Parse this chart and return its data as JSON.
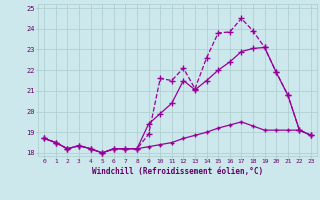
{
  "background_color": "#cce8ec",
  "grid_color": "#aacccc",
  "line_color": "#990099",
  "xlabel": "Windchill (Refroidissement éolien,°C)",
  "xlabel_color": "#660066",
  "tick_color": "#660066",
  "xlim": [
    -0.5,
    23.5
  ],
  "ylim": [
    17.85,
    25.2
  ],
  "yticks": [
    18,
    19,
    20,
    21,
    22,
    23,
    24,
    25
  ],
  "xticks": [
    0,
    1,
    2,
    3,
    4,
    5,
    6,
    7,
    8,
    9,
    10,
    11,
    12,
    13,
    14,
    15,
    16,
    17,
    18,
    19,
    20,
    21,
    22,
    23
  ],
  "series": [
    {
      "x": [
        0,
        1,
        2,
        3,
        4,
        5,
        6,
        7,
        8,
        9,
        10,
        11,
        12,
        13,
        14,
        15,
        16,
        17,
        18,
        19,
        20,
        21,
        22,
        23
      ],
      "y": [
        18.7,
        18.5,
        18.2,
        18.35,
        18.2,
        18.0,
        18.2,
        18.2,
        18.2,
        18.9,
        21.6,
        21.5,
        22.1,
        21.1,
        22.6,
        23.8,
        23.85,
        24.5,
        23.9,
        23.1,
        21.9,
        20.8,
        19.1,
        18.85
      ],
      "marker": "+",
      "markersize": 4,
      "linestyle": "--",
      "linewidth": 0.9
    },
    {
      "x": [
        0,
        1,
        2,
        3,
        4,
        5,
        6,
        7,
        8,
        9,
        10,
        11,
        12,
        13,
        14,
        15,
        16,
        17,
        18,
        19,
        20,
        21,
        22,
        23
      ],
      "y": [
        18.7,
        18.5,
        18.2,
        18.35,
        18.2,
        18.0,
        18.2,
        18.2,
        18.2,
        19.4,
        19.9,
        20.4,
        21.5,
        21.05,
        21.5,
        22.0,
        22.4,
        22.9,
        23.05,
        23.1,
        21.9,
        20.8,
        19.1,
        18.85
      ],
      "marker": "+",
      "markersize": 4,
      "linestyle": "-",
      "linewidth": 0.9
    },
    {
      "x": [
        0,
        1,
        2,
        3,
        4,
        5,
        6,
        7,
        8,
        9,
        10,
        11,
        12,
        13,
        14,
        15,
        16,
        17,
        18,
        19,
        20,
        21,
        22,
        23
      ],
      "y": [
        18.7,
        18.5,
        18.2,
        18.35,
        18.2,
        18.0,
        18.2,
        18.2,
        18.2,
        18.3,
        18.4,
        18.5,
        18.7,
        18.85,
        19.0,
        19.2,
        19.35,
        19.5,
        19.3,
        19.1,
        19.1,
        19.1,
        19.1,
        18.85
      ],
      "marker": "+",
      "markersize": 3,
      "linestyle": "-",
      "linewidth": 0.9
    }
  ]
}
